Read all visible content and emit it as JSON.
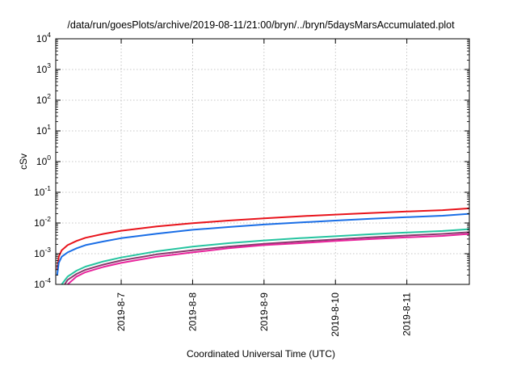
{
  "chart_data": {
    "type": "line",
    "title": "/data/run/goesPlots/archive/2019-08-11/21:00/bryn/../bryn/5daysMarsAccumulated.plot",
    "xlabel": "Coordinated Universal Time (UTC)",
    "ylabel": "cSv",
    "y_scale": "log",
    "ylim": [
      0.0001,
      10000
    ],
    "xlim": [
      "2019-08-06T02:00",
      "2019-08-11T21:00"
    ],
    "grid": true,
    "x_ticks": [
      "2019-8-7",
      "2019-8-8",
      "2019-8-9",
      "2019-8-10",
      "2019-8-11"
    ],
    "y_ticks": [
      {
        "value": 0.0001,
        "base": "10",
        "exp": "-4"
      },
      {
        "value": 0.001,
        "base": "10",
        "exp": "-3"
      },
      {
        "value": 0.01,
        "base": "10",
        "exp": "-2"
      },
      {
        "value": 0.1,
        "base": "10",
        "exp": "-1"
      },
      {
        "value": 1,
        "base": "10",
        "exp": "0"
      },
      {
        "value": 10,
        "base": "10",
        "exp": "1"
      },
      {
        "value": 100,
        "base": "10",
        "exp": "2"
      },
      {
        "value": 1000,
        "base": "10",
        "exp": "3"
      },
      {
        "value": 10000,
        "base": "10",
        "exp": "4"
      }
    ],
    "series": [
      {
        "color": "#e8141c",
        "x": [
          "2019-08-06T02:30",
          "2019-08-06T03:00",
          "2019-08-06T04:00",
          "2019-08-06T06:00",
          "2019-08-06T09:00",
          "2019-08-06T12:00",
          "2019-08-06T18:00",
          "2019-08-07T00:00",
          "2019-08-07T12:00",
          "2019-08-08T00:00",
          "2019-08-08T12:00",
          "2019-08-09T00:00",
          "2019-08-09T12:00",
          "2019-08-10T00:00",
          "2019-08-10T12:00",
          "2019-08-11T00:00",
          "2019-08-11T12:00",
          "2019-08-11T21:00"
        ],
        "values": [
          0.0003,
          0.0008,
          0.0013,
          0.0019,
          0.0026,
          0.0033,
          0.0044,
          0.0056,
          0.0077,
          0.0098,
          0.012,
          0.0142,
          0.0165,
          0.0188,
          0.0212,
          0.0237,
          0.0262,
          0.03
        ]
      },
      {
        "color": "#1a6ee6",
        "x": [
          "2019-08-06T02:30",
          "2019-08-06T03:00",
          "2019-08-06T04:00",
          "2019-08-06T06:00",
          "2019-08-06T09:00",
          "2019-08-06T12:00",
          "2019-08-06T18:00",
          "2019-08-07T00:00",
          "2019-08-07T12:00",
          "2019-08-08T00:00",
          "2019-08-08T12:00",
          "2019-08-09T00:00",
          "2019-08-09T12:00",
          "2019-08-10T00:00",
          "2019-08-10T12:00",
          "2019-08-11T00:00",
          "2019-08-11T12:00",
          "2019-08-11T21:00"
        ],
        "values": [
          0.0002,
          0.0005,
          0.0008,
          0.0011,
          0.0015,
          0.0019,
          0.0025,
          0.0032,
          0.0045,
          0.006,
          0.0074,
          0.0089,
          0.0104,
          0.012,
          0.0137,
          0.0155,
          0.0172,
          0.02
        ]
      },
      {
        "color": "#26c4a0",
        "x": [
          "2019-08-06T04:00",
          "2019-08-06T06:00",
          "2019-08-06T09:00",
          "2019-08-06T12:00",
          "2019-08-06T18:00",
          "2019-08-07T00:00",
          "2019-08-07T12:00",
          "2019-08-08T00:00",
          "2019-08-08T12:00",
          "2019-08-09T00:00",
          "2019-08-09T12:00",
          "2019-08-10T00:00",
          "2019-08-10T12:00",
          "2019-08-11T00:00",
          "2019-08-11T12:00",
          "2019-08-11T21:00"
        ],
        "values": [
          0.0001,
          0.00018,
          0.00028,
          0.00038,
          0.00056,
          0.00075,
          0.0012,
          0.0017,
          0.0022,
          0.0027,
          0.0032,
          0.0037,
          0.0043,
          0.0049,
          0.0055,
          0.0063
        ]
      },
      {
        "color": "#8a3a6e",
        "x": [
          "2019-08-06T05:00",
          "2019-08-06T06:00",
          "2019-08-06T09:00",
          "2019-08-06T12:00",
          "2019-08-06T18:00",
          "2019-08-07T00:00",
          "2019-08-07T12:00",
          "2019-08-08T00:00",
          "2019-08-08T12:00",
          "2019-08-09T00:00",
          "2019-08-09T12:00",
          "2019-08-10T00:00",
          "2019-08-10T12:00",
          "2019-08-11T00:00",
          "2019-08-11T12:00",
          "2019-08-11T21:00"
        ],
        "values": [
          0.0001,
          0.00014,
          0.00022,
          0.0003,
          0.00044,
          0.0006,
          0.00095,
          0.0013,
          0.0017,
          0.0021,
          0.0025,
          0.0029,
          0.0034,
          0.0039,
          0.0044,
          0.005
        ]
      },
      {
        "color": "#e8249c",
        "x": [
          "2019-08-06T06:00",
          "2019-08-06T09:00",
          "2019-08-06T12:00",
          "2019-08-06T18:00",
          "2019-08-07T00:00",
          "2019-08-07T12:00",
          "2019-08-08T00:00",
          "2019-08-08T12:00",
          "2019-08-09T00:00",
          "2019-08-09T12:00",
          "2019-08-10T00:00",
          "2019-08-10T12:00",
          "2019-08-11T00:00",
          "2019-08-11T12:00",
          "2019-08-11T21:00"
        ],
        "values": [
          0.0001,
          0.00018,
          0.00025,
          0.00037,
          0.0005,
          0.0008,
          0.0011,
          0.0015,
          0.0019,
          0.0022,
          0.0026,
          0.003,
          0.0034,
          0.0038,
          0.0044
        ]
      }
    ]
  }
}
